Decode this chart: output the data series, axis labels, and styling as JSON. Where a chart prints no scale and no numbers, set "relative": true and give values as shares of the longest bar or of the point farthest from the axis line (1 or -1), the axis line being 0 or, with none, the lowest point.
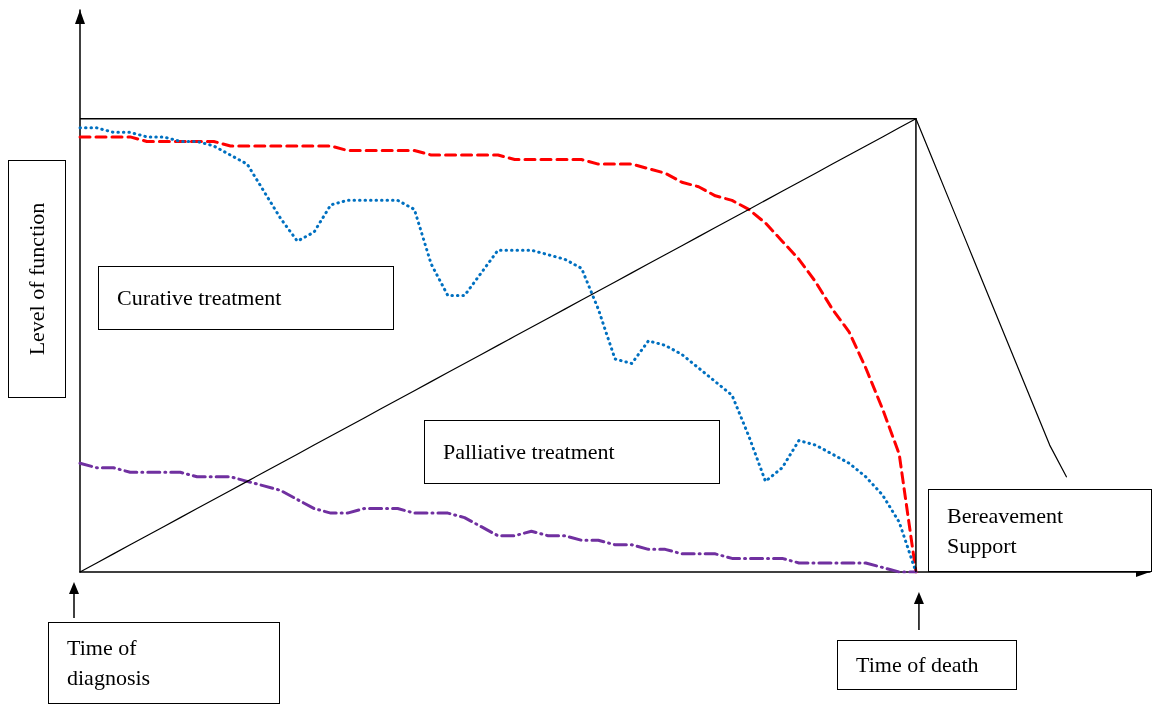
{
  "chart_data": {
    "type": "line",
    "relative": true,
    "ylabel": "Level of function",
    "marker": "none",
    "annotations": [
      "Curative treatment",
      "Palliative treatment",
      "Bereavement Support",
      "Time of diagnosis",
      "Time of death"
    ],
    "categories": [
      null,
      null,
      null,
      null,
      null,
      null,
      null,
      null,
      null,
      null,
      null,
      null,
      null,
      null,
      null,
      null,
      null,
      null,
      null,
      null,
      null,
      null,
      null,
      null,
      null,
      null,
      null,
      null,
      null,
      null,
      null,
      null,
      null,
      null,
      null,
      null,
      null,
      null,
      null,
      null,
      null,
      null,
      null,
      null,
      null,
      null,
      null,
      null,
      null,
      null,
      null,
      null,
      null,
      null,
      null,
      null,
      null,
      null,
      null,
      null,
      null,
      null,
      null,
      null,
      null
    ],
    "series": [
      {
        "color": "#ff0000",
        "line_style": "dashed",
        "values": [
          0.96,
          0.96,
          0.96,
          0.96,
          0.95,
          0.95,
          0.95,
          0.95,
          0.95,
          0.94,
          0.94,
          0.94,
          0.94,
          0.94,
          0.94,
          0.94,
          0.93,
          0.93,
          0.93,
          0.93,
          0.93,
          0.92,
          0.92,
          0.92,
          0.92,
          0.92,
          0.91,
          0.91,
          0.91,
          0.91,
          0.91,
          0.9,
          0.9,
          0.9,
          0.89,
          0.88,
          0.86,
          0.85,
          0.83,
          0.82,
          0.8,
          0.77,
          0.73,
          0.69,
          0.64,
          0.58,
          0.53,
          0.45,
          0.36,
          0.26,
          0,
          null,
          null,
          null,
          null,
          null,
          null,
          null,
          null,
          null,
          null,
          null,
          null,
          null,
          null
        ]
      },
      {
        "color": "#0070c0",
        "line_style": "dotted",
        "values": [
          0.98,
          0.98,
          0.97,
          0.97,
          0.96,
          0.96,
          0.95,
          0.95,
          0.94,
          0.92,
          0.9,
          0.84,
          0.78,
          0.73,
          0.75,
          0.81,
          0.82,
          0.82,
          0.82,
          0.82,
          0.8,
          0.68,
          0.61,
          0.61,
          0.66,
          0.71,
          0.71,
          0.71,
          0.7,
          0.69,
          0.67,
          0.58,
          0.47,
          0.46,
          0.51,
          0.5,
          0.48,
          0.45,
          0.42,
          0.39,
          0.3,
          0.2,
          0.23,
          0.29,
          0.28,
          0.26,
          0.24,
          0.21,
          0.17,
          0.11,
          0,
          null,
          null,
          null,
          null,
          null,
          null,
          null,
          null,
          null,
          null,
          null,
          null,
          null,
          null
        ]
      },
      {
        "color": "#7030a0",
        "line_style": "dashdot",
        "values": [
          0.24,
          0.23,
          0.23,
          0.22,
          0.22,
          0.22,
          0.22,
          0.21,
          0.21,
          0.21,
          0.2,
          0.19,
          0.18,
          0.16,
          0.14,
          0.13,
          0.13,
          0.14,
          0.14,
          0.14,
          0.13,
          0.13,
          0.13,
          0.12,
          0.1,
          0.08,
          0.08,
          0.09,
          0.08,
          0.08,
          0.07,
          0.07,
          0.06,
          0.06,
          0.05,
          0.05,
          0.04,
          0.04,
          0.04,
          0.03,
          0.03,
          0.03,
          0.03,
          0.02,
          0.02,
          0.02,
          0.02,
          0.02,
          0.01,
          0,
          0,
          null,
          null,
          null,
          null,
          null,
          null,
          null,
          null,
          null,
          null,
          null,
          null,
          null,
          null
        ]
      },
      {
        "color": "#000000",
        "line_style": "solid",
        "values": [
          0,
          0.02,
          0.04,
          0.06,
          0.08,
          0.1,
          0.12,
          0.14,
          0.16,
          0.18,
          0.2,
          0.22,
          0.24,
          0.26,
          0.28,
          0.3,
          0.32,
          0.34,
          0.36,
          0.38,
          0.4,
          0.42,
          0.44,
          0.46,
          0.48,
          0.5,
          0.52,
          0.54,
          0.56,
          0.58,
          0.6,
          0.62,
          0.64,
          0.66,
          0.68,
          0.7,
          0.72,
          0.74,
          0.76,
          0.78,
          0.8,
          0.82,
          0.84,
          0.86,
          0.88,
          0.9,
          0.92,
          0.94,
          0.96,
          0.98,
          1,
          null,
          null,
          null,
          null,
          null,
          null,
          null,
          null,
          null,
          null,
          null,
          null,
          null,
          null
        ]
      },
      {
        "color": "#000000",
        "line_style": "solid",
        "values": [
          null,
          null,
          null,
          null,
          null,
          null,
          null,
          null,
          null,
          null,
          null,
          null,
          null,
          null,
          null,
          null,
          null,
          null,
          null,
          null,
          null,
          null,
          null,
          null,
          null,
          null,
          null,
          null,
          null,
          null,
          null,
          null,
          null,
          null,
          null,
          null,
          null,
          null,
          null,
          null,
          null,
          null,
          null,
          null,
          null,
          null,
          null,
          null,
          null,
          null,
          1,
          0.91,
          0.82,
          0.73,
          0.64,
          0.55,
          0.46,
          0.37,
          0.28,
          0.21,
          null,
          null,
          null,
          null,
          null
        ]
      }
    ]
  }
}
